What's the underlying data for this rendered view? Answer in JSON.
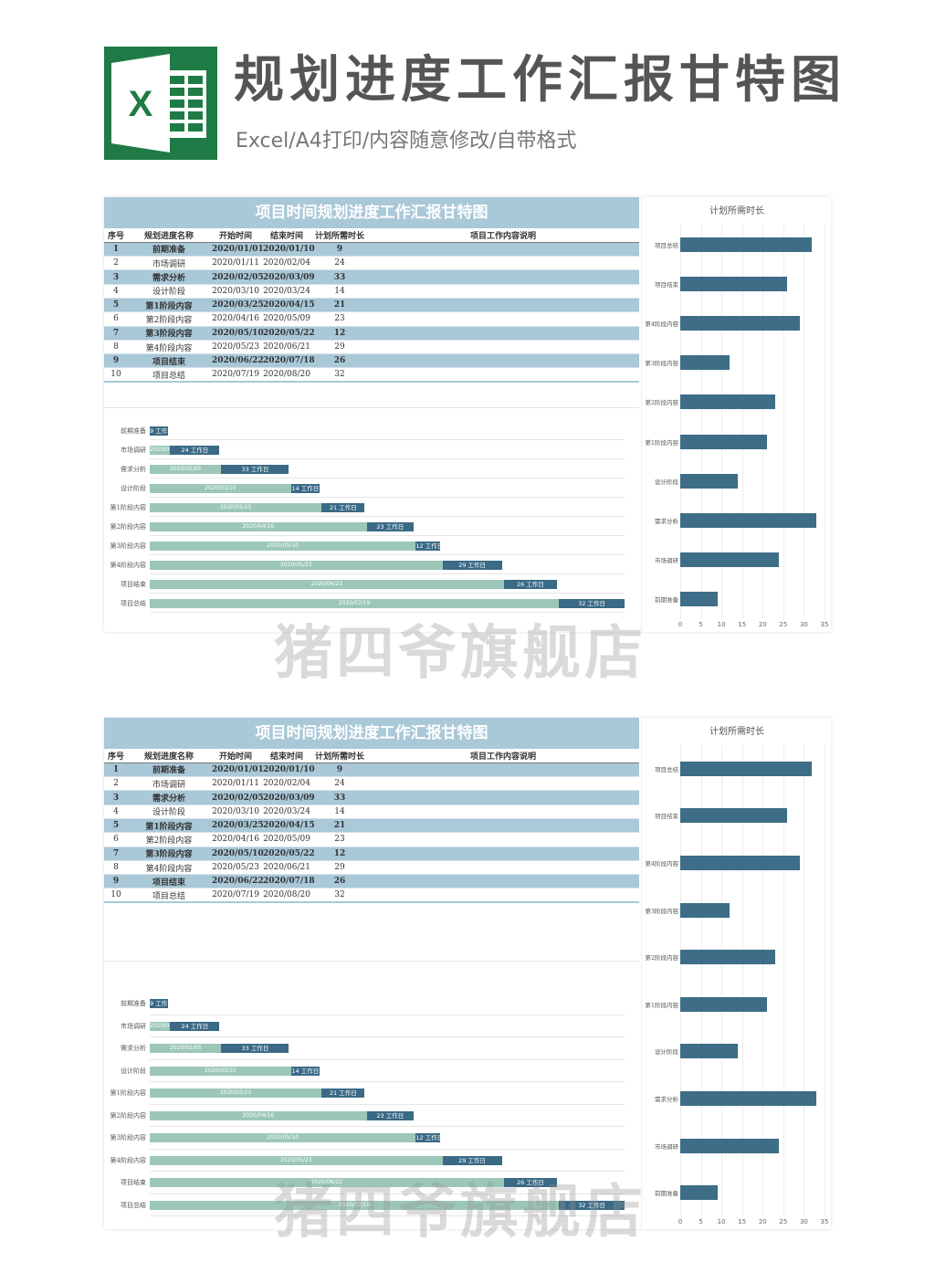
{
  "header": {
    "title": "规划进度工作汇报甘特图",
    "subtitle": "Excel/A4打印/内容随意修改/自带格式",
    "logo_letter": "X"
  },
  "sheet": {
    "title": "项目时间规划进度工作汇报甘特图",
    "columns": [
      "序号",
      "规划进度名称",
      "开始时间",
      "结束时间",
      "计划所需时长",
      "项目工作内容说明"
    ],
    "rows": [
      {
        "no": "1",
        "name": "前期准备",
        "start": "2020/01/01",
        "end": "2020/01/10",
        "days": 9
      },
      {
        "no": "2",
        "name": "市场调研",
        "start": "2020/01/11",
        "end": "2020/02/04",
        "days": 24
      },
      {
        "no": "3",
        "name": "需求分析",
        "start": "2020/02/05",
        "end": "2020/03/09",
        "days": 33
      },
      {
        "no": "4",
        "name": "设计阶段",
        "start": "2020/03/10",
        "end": "2020/03/24",
        "days": 14
      },
      {
        "no": "5",
        "name": "第1阶段内容",
        "start": "2020/03/25",
        "end": "2020/04/15",
        "days": 21
      },
      {
        "no": "6",
        "name": "第2阶段内容",
        "start": "2020/04/16",
        "end": "2020/05/09",
        "days": 23
      },
      {
        "no": "7",
        "name": "第3阶段内容",
        "start": "2020/05/10",
        "end": "2020/05/22",
        "days": 12
      },
      {
        "no": "8",
        "name": "第4阶段内容",
        "start": "2020/05/23",
        "end": "2020/06/21",
        "days": 29
      },
      {
        "no": "9",
        "name": "项目结束",
        "start": "2020/06/22",
        "end": "2020/07/18",
        "days": 26
      },
      {
        "no": "10",
        "name": "项目总结",
        "start": "2020/07/19",
        "end": "2020/08/20",
        "days": 32
      }
    ],
    "duration_suffix": "工作日",
    "side_chart_title": "计划所需时长"
  },
  "chart_data": [
    {
      "type": "bar",
      "title": "",
      "categories": [
        "前期准备",
        "市场调研",
        "需求分析",
        "设计阶段",
        "第1阶段内容",
        "第2阶段内容",
        "第3阶段内容",
        "第4阶段内容",
        "项目结束",
        "项目总结"
      ],
      "series": [
        {
          "values": [
            0,
            10,
            35,
            69,
            84,
            106,
            130,
            143,
            173,
            200
          ]
        },
        {
          "values": [
            9,
            24,
            33,
            14,
            21,
            23,
            12,
            29,
            26,
            32
          ]
        }
      ],
      "orientation": "horizontal-stacked"
    },
    {
      "type": "bar",
      "title": "计划所需时长",
      "categories": [
        "项目总结",
        "项目结束",
        "第4阶段内容",
        "第3阶段内容",
        "第2阶段内容",
        "第1阶段内容",
        "设计阶段",
        "需求分析",
        "市场调研",
        "前期准备"
      ],
      "values": [
        32,
        26,
        29,
        12,
        23,
        21,
        14,
        33,
        24,
        9
      ],
      "xlim": [
        0,
        35
      ],
      "xticks": [
        "0",
        "5",
        "10",
        "15",
        "20",
        "25",
        "30",
        "35"
      ],
      "orientation": "horizontal"
    }
  ],
  "watermark": "猪四爷旗舰店",
  "colors": {
    "excel_green": "#1f7b45",
    "header_blue": "#a9c8d8",
    "bar_dark": "#3a6a86",
    "bar_light": "#9cc7b8"
  }
}
